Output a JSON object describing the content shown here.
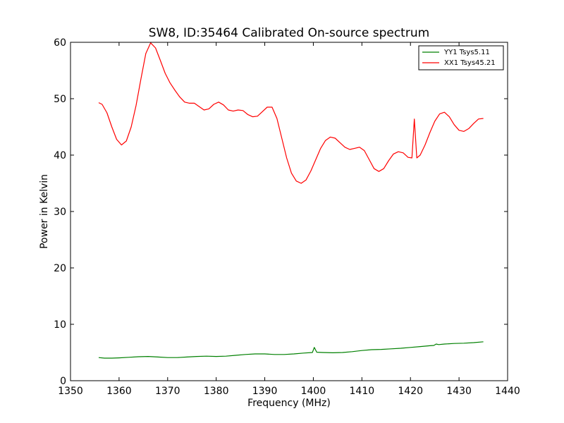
{
  "chart_data": {
    "type": "line",
    "title": "SW8, ID:35464 Calibrated On-source spectrum",
    "xlabel": "Frequency (MHz)",
    "ylabel": "Power in Kelvin",
    "xlim": [
      1350,
      1440
    ],
    "ylim": [
      0,
      60
    ],
    "xticks": [
      1350,
      1360,
      1370,
      1380,
      1390,
      1400,
      1410,
      1420,
      1430,
      1440
    ],
    "yticks": [
      0,
      10,
      20,
      30,
      40,
      50,
      60
    ],
    "legend_position": "top-right",
    "grid": false,
    "series": [
      {
        "name": "YY1 Tsys5.11",
        "color": "#008000",
        "points": [
          [
            1355.8,
            4.1
          ],
          [
            1357.0,
            4.0
          ],
          [
            1358.5,
            4.0
          ],
          [
            1360,
            4.05
          ],
          [
            1362,
            4.15
          ],
          [
            1364,
            4.25
          ],
          [
            1366,
            4.3
          ],
          [
            1368,
            4.2
          ],
          [
            1370,
            4.1
          ],
          [
            1372,
            4.1
          ],
          [
            1374,
            4.2
          ],
          [
            1376,
            4.3
          ],
          [
            1378,
            4.35
          ],
          [
            1380,
            4.3
          ],
          [
            1382,
            4.35
          ],
          [
            1384,
            4.5
          ],
          [
            1386,
            4.65
          ],
          [
            1388,
            4.75
          ],
          [
            1390,
            4.75
          ],
          [
            1392,
            4.65
          ],
          [
            1394,
            4.65
          ],
          [
            1396,
            4.75
          ],
          [
            1398,
            4.9
          ],
          [
            1399.8,
            5.0
          ],
          [
            1400.2,
            5.9
          ],
          [
            1400.7,
            5.05
          ],
          [
            1402,
            5.0
          ],
          [
            1404,
            4.95
          ],
          [
            1406,
            5.0
          ],
          [
            1408,
            5.15
          ],
          [
            1410,
            5.35
          ],
          [
            1412,
            5.5
          ],
          [
            1414,
            5.55
          ],
          [
            1416,
            5.65
          ],
          [
            1418,
            5.75
          ],
          [
            1420,
            5.9
          ],
          [
            1422,
            6.05
          ],
          [
            1424,
            6.2
          ],
          [
            1424.8,
            6.25
          ],
          [
            1425.3,
            6.5
          ],
          [
            1425.8,
            6.4
          ],
          [
            1427,
            6.5
          ],
          [
            1429,
            6.6
          ],
          [
            1431,
            6.65
          ],
          [
            1433,
            6.75
          ],
          [
            1435,
            6.9
          ]
        ]
      },
      {
        "name": "XX1 Tsys45.21",
        "color": "#ff0000",
        "points": [
          [
            1355.8,
            49.3
          ],
          [
            1356.5,
            49.0
          ],
          [
            1357.5,
            47.5
          ],
          [
            1358.5,
            45.0
          ],
          [
            1359.5,
            42.8
          ],
          [
            1360.5,
            41.8
          ],
          [
            1361.5,
            42.5
          ],
          [
            1362.5,
            45.0
          ],
          [
            1363.5,
            48.8
          ],
          [
            1364.5,
            53.5
          ],
          [
            1365.5,
            58.0
          ],
          [
            1366.5,
            59.9
          ],
          [
            1367.5,
            59.0
          ],
          [
            1368.5,
            56.8
          ],
          [
            1369.5,
            54.5
          ],
          [
            1370.5,
            52.8
          ],
          [
            1371.5,
            51.5
          ],
          [
            1372.5,
            50.3
          ],
          [
            1373.5,
            49.4
          ],
          [
            1374.5,
            49.2
          ],
          [
            1375.5,
            49.2
          ],
          [
            1376.5,
            48.6
          ],
          [
            1377.5,
            48.0
          ],
          [
            1378.5,
            48.2
          ],
          [
            1379.5,
            49.0
          ],
          [
            1380.5,
            49.4
          ],
          [
            1381.5,
            48.9
          ],
          [
            1382.5,
            48.0
          ],
          [
            1383.5,
            47.8
          ],
          [
            1384.5,
            48.0
          ],
          [
            1385.5,
            47.9
          ],
          [
            1386.5,
            47.2
          ],
          [
            1387.5,
            46.8
          ],
          [
            1388.5,
            46.9
          ],
          [
            1389.5,
            47.7
          ],
          [
            1390.5,
            48.5
          ],
          [
            1391.5,
            48.5
          ],
          [
            1392.5,
            46.5
          ],
          [
            1393.5,
            43.0
          ],
          [
            1394.5,
            39.5
          ],
          [
            1395.5,
            36.8
          ],
          [
            1396.5,
            35.4
          ],
          [
            1397.5,
            35.0
          ],
          [
            1398.5,
            35.6
          ],
          [
            1399.5,
            37.2
          ],
          [
            1400.5,
            39.2
          ],
          [
            1401.5,
            41.2
          ],
          [
            1402.5,
            42.6
          ],
          [
            1403.5,
            43.2
          ],
          [
            1404.5,
            43.0
          ],
          [
            1405.5,
            42.2
          ],
          [
            1406.5,
            41.4
          ],
          [
            1407.5,
            41.0
          ],
          [
            1408.5,
            41.2
          ],
          [
            1409.5,
            41.4
          ],
          [
            1410.5,
            40.8
          ],
          [
            1411.5,
            39.2
          ],
          [
            1412.5,
            37.6
          ],
          [
            1413.5,
            37.1
          ],
          [
            1414.5,
            37.6
          ],
          [
            1415.5,
            39.0
          ],
          [
            1416.5,
            40.2
          ],
          [
            1417.5,
            40.6
          ],
          [
            1418.5,
            40.4
          ],
          [
            1419.5,
            39.6
          ],
          [
            1420.3,
            39.5
          ],
          [
            1420.8,
            46.4
          ],
          [
            1421.3,
            39.5
          ],
          [
            1422.0,
            40.0
          ],
          [
            1423.0,
            41.8
          ],
          [
            1424.0,
            44.0
          ],
          [
            1425.0,
            46.0
          ],
          [
            1426.0,
            47.3
          ],
          [
            1427.0,
            47.6
          ],
          [
            1428.0,
            46.8
          ],
          [
            1429.0,
            45.4
          ],
          [
            1430.0,
            44.4
          ],
          [
            1431.0,
            44.2
          ],
          [
            1432.0,
            44.7
          ],
          [
            1433.0,
            45.6
          ],
          [
            1434.0,
            46.4
          ],
          [
            1435.0,
            46.5
          ]
        ]
      }
    ]
  }
}
